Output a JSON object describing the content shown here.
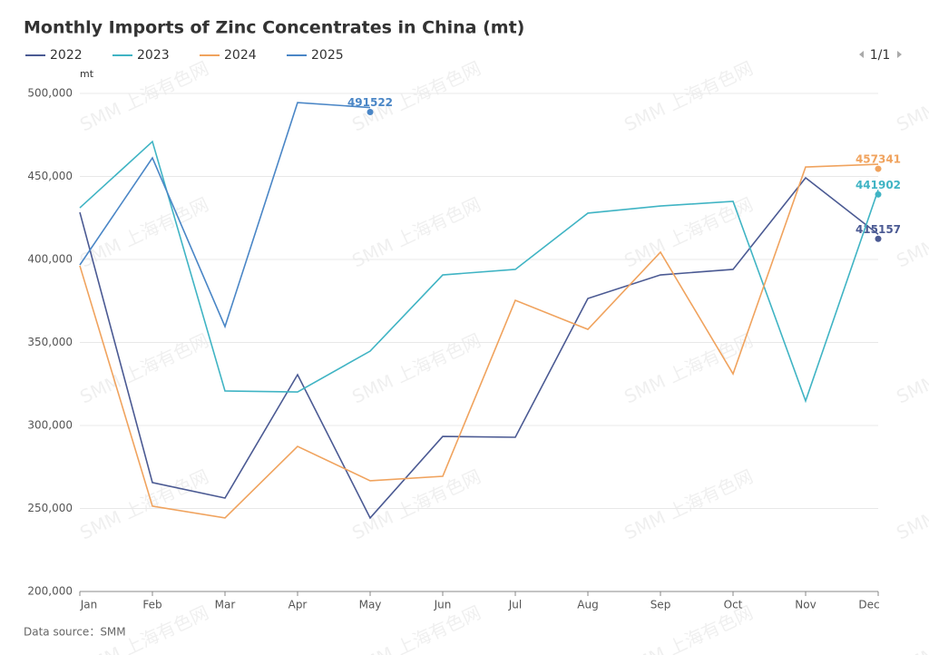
{
  "chart_data": {
    "type": "line",
    "title": "Monthly Imports of Zinc Concentrates in China (mt)",
    "y_label": "mt",
    "source": "Data source：SMM",
    "legend_page": "1/1",
    "watermark": "SMM 上海有色网",
    "categories": [
      "Jan",
      "Feb",
      "Mar",
      "Apr",
      "May",
      "Jun",
      "Jul",
      "Aug",
      "Sep",
      "Oct",
      "Nov",
      "Dec"
    ],
    "series": [
      {
        "name": "2022",
        "color": "#4b5a93",
        "values": [
          428400,
          265600,
          256300,
          330600,
          244300,
          293400,
          292900,
          376500,
          390700,
          394000,
          449200,
          415157
        ]
      },
      {
        "name": "2023",
        "color": "#40b4c4",
        "values": [
          431100,
          471000,
          320800,
          320200,
          344800,
          390700,
          394000,
          427900,
          432200,
          435000,
          314800,
          441902
        ]
      },
      {
        "name": "2024",
        "color": "#f0a35e",
        "values": [
          396200,
          251400,
          244300,
          287400,
          266700,
          269400,
          375400,
          357900,
          404400,
          331100,
          455700,
          457341
        ]
      },
      {
        "name": "2025",
        "color": "#4a86c6",
        "values": [
          396700,
          461200,
          359600,
          494500,
          491522,
          null,
          null,
          null,
          null,
          null,
          null,
          null
        ]
      }
    ],
    "ylim": [
      200000,
      500000
    ],
    "yticks": [
      {
        "value": 200000,
        "label": "200,000"
      },
      {
        "value": 250000,
        "label": "250,000"
      },
      {
        "value": 300000,
        "label": "300,000"
      },
      {
        "value": 350000,
        "label": "350,000"
      },
      {
        "value": 400000,
        "label": "400,000"
      },
      {
        "value": 450000,
        "label": "450,000"
      },
      {
        "value": 500000,
        "label": "500,000"
      }
    ],
    "grid": true,
    "legend": "top-left"
  }
}
